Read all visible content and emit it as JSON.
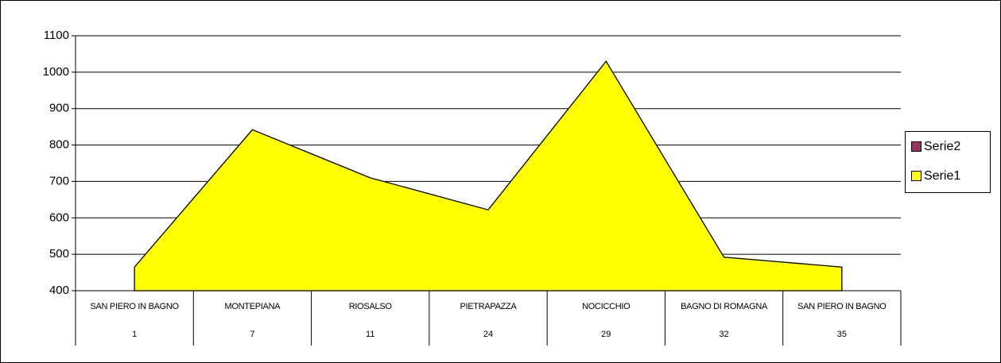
{
  "chart_data": {
    "type": "area",
    "categories": [
      "SAN PIERO IN BAGNO",
      "MONTEPIANA",
      "RIOSALSO",
      "PIETRAPAZZA",
      "NOCICCHIO",
      "BAGNO DI ROMAGNA",
      "SAN PIERO IN BAGNO"
    ],
    "category_numbers": [
      1,
      7,
      11,
      24,
      29,
      32,
      35
    ],
    "series": [
      {
        "name": "Serie2",
        "color": "#993366",
        "values": [
          null,
          null,
          null,
          null,
          null,
          null,
          null
        ]
      },
      {
        "name": "Serie1",
        "color": "#ffff00",
        "values": [
          465,
          842,
          710,
          622,
          1030,
          492,
          465
        ]
      }
    ],
    "ylim": [
      400,
      1100
    ],
    "yticks": [
      400,
      500,
      600,
      700,
      800,
      900,
      1000,
      1100
    ],
    "grid": true,
    "legend": "right"
  }
}
